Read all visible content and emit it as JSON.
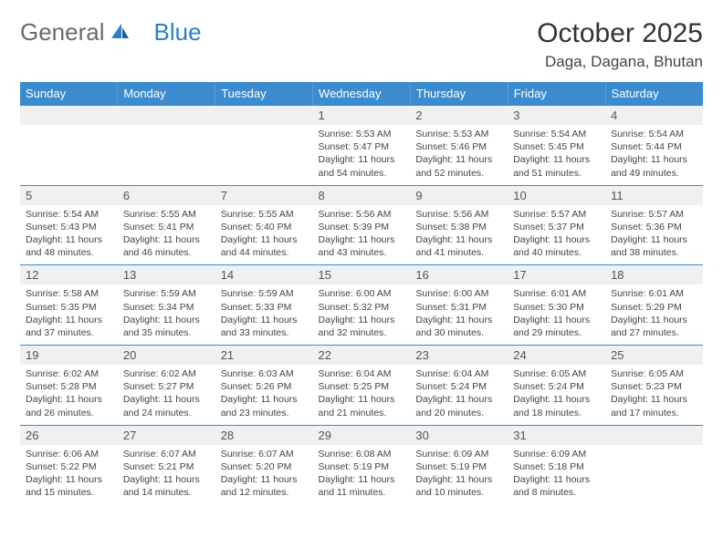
{
  "logo": {
    "general": "General",
    "blue": "Blue"
  },
  "title": "October 2025",
  "location": "Daga, Dagana, Bhutan",
  "colors": {
    "header_bg": "#3b8bce",
    "header_text": "#ffffff",
    "daynum_bg": "#eef0f2",
    "border": "#3b8bce",
    "text": "#444444"
  },
  "weekdays": [
    "Sunday",
    "Monday",
    "Tuesday",
    "Wednesday",
    "Thursday",
    "Friday",
    "Saturday"
  ],
  "weeks": [
    [
      null,
      null,
      null,
      {
        "n": "1",
        "sr": "Sunrise: 5:53 AM",
        "ss": "Sunset: 5:47 PM",
        "dl": "Daylight: 11 hours and 54 minutes."
      },
      {
        "n": "2",
        "sr": "Sunrise: 5:53 AM",
        "ss": "Sunset: 5:46 PM",
        "dl": "Daylight: 11 hours and 52 minutes."
      },
      {
        "n": "3",
        "sr": "Sunrise: 5:54 AM",
        "ss": "Sunset: 5:45 PM",
        "dl": "Daylight: 11 hours and 51 minutes."
      },
      {
        "n": "4",
        "sr": "Sunrise: 5:54 AM",
        "ss": "Sunset: 5:44 PM",
        "dl": "Daylight: 11 hours and 49 minutes."
      }
    ],
    [
      {
        "n": "5",
        "sr": "Sunrise: 5:54 AM",
        "ss": "Sunset: 5:43 PM",
        "dl": "Daylight: 11 hours and 48 minutes."
      },
      {
        "n": "6",
        "sr": "Sunrise: 5:55 AM",
        "ss": "Sunset: 5:41 PM",
        "dl": "Daylight: 11 hours and 46 minutes."
      },
      {
        "n": "7",
        "sr": "Sunrise: 5:55 AM",
        "ss": "Sunset: 5:40 PM",
        "dl": "Daylight: 11 hours and 44 minutes."
      },
      {
        "n": "8",
        "sr": "Sunrise: 5:56 AM",
        "ss": "Sunset: 5:39 PM",
        "dl": "Daylight: 11 hours and 43 minutes."
      },
      {
        "n": "9",
        "sr": "Sunrise: 5:56 AM",
        "ss": "Sunset: 5:38 PM",
        "dl": "Daylight: 11 hours and 41 minutes."
      },
      {
        "n": "10",
        "sr": "Sunrise: 5:57 AM",
        "ss": "Sunset: 5:37 PM",
        "dl": "Daylight: 11 hours and 40 minutes."
      },
      {
        "n": "11",
        "sr": "Sunrise: 5:57 AM",
        "ss": "Sunset: 5:36 PM",
        "dl": "Daylight: 11 hours and 38 minutes."
      }
    ],
    [
      {
        "n": "12",
        "sr": "Sunrise: 5:58 AM",
        "ss": "Sunset: 5:35 PM",
        "dl": "Daylight: 11 hours and 37 minutes."
      },
      {
        "n": "13",
        "sr": "Sunrise: 5:59 AM",
        "ss": "Sunset: 5:34 PM",
        "dl": "Daylight: 11 hours and 35 minutes."
      },
      {
        "n": "14",
        "sr": "Sunrise: 5:59 AM",
        "ss": "Sunset: 5:33 PM",
        "dl": "Daylight: 11 hours and 33 minutes."
      },
      {
        "n": "15",
        "sr": "Sunrise: 6:00 AM",
        "ss": "Sunset: 5:32 PM",
        "dl": "Daylight: 11 hours and 32 minutes."
      },
      {
        "n": "16",
        "sr": "Sunrise: 6:00 AM",
        "ss": "Sunset: 5:31 PM",
        "dl": "Daylight: 11 hours and 30 minutes."
      },
      {
        "n": "17",
        "sr": "Sunrise: 6:01 AM",
        "ss": "Sunset: 5:30 PM",
        "dl": "Daylight: 11 hours and 29 minutes."
      },
      {
        "n": "18",
        "sr": "Sunrise: 6:01 AM",
        "ss": "Sunset: 5:29 PM",
        "dl": "Daylight: 11 hours and 27 minutes."
      }
    ],
    [
      {
        "n": "19",
        "sr": "Sunrise: 6:02 AM",
        "ss": "Sunset: 5:28 PM",
        "dl": "Daylight: 11 hours and 26 minutes."
      },
      {
        "n": "20",
        "sr": "Sunrise: 6:02 AM",
        "ss": "Sunset: 5:27 PM",
        "dl": "Daylight: 11 hours and 24 minutes."
      },
      {
        "n": "21",
        "sr": "Sunrise: 6:03 AM",
        "ss": "Sunset: 5:26 PM",
        "dl": "Daylight: 11 hours and 23 minutes."
      },
      {
        "n": "22",
        "sr": "Sunrise: 6:04 AM",
        "ss": "Sunset: 5:25 PM",
        "dl": "Daylight: 11 hours and 21 minutes."
      },
      {
        "n": "23",
        "sr": "Sunrise: 6:04 AM",
        "ss": "Sunset: 5:24 PM",
        "dl": "Daylight: 11 hours and 20 minutes."
      },
      {
        "n": "24",
        "sr": "Sunrise: 6:05 AM",
        "ss": "Sunset: 5:24 PM",
        "dl": "Daylight: 11 hours and 18 minutes."
      },
      {
        "n": "25",
        "sr": "Sunrise: 6:05 AM",
        "ss": "Sunset: 5:23 PM",
        "dl": "Daylight: 11 hours and 17 minutes."
      }
    ],
    [
      {
        "n": "26",
        "sr": "Sunrise: 6:06 AM",
        "ss": "Sunset: 5:22 PM",
        "dl": "Daylight: 11 hours and 15 minutes."
      },
      {
        "n": "27",
        "sr": "Sunrise: 6:07 AM",
        "ss": "Sunset: 5:21 PM",
        "dl": "Daylight: 11 hours and 14 minutes."
      },
      {
        "n": "28",
        "sr": "Sunrise: 6:07 AM",
        "ss": "Sunset: 5:20 PM",
        "dl": "Daylight: 11 hours and 12 minutes."
      },
      {
        "n": "29",
        "sr": "Sunrise: 6:08 AM",
        "ss": "Sunset: 5:19 PM",
        "dl": "Daylight: 11 hours and 11 minutes."
      },
      {
        "n": "30",
        "sr": "Sunrise: 6:09 AM",
        "ss": "Sunset: 5:19 PM",
        "dl": "Daylight: 11 hours and 10 minutes."
      },
      {
        "n": "31",
        "sr": "Sunrise: 6:09 AM",
        "ss": "Sunset: 5:18 PM",
        "dl": "Daylight: 11 hours and 8 minutes."
      },
      null
    ]
  ]
}
